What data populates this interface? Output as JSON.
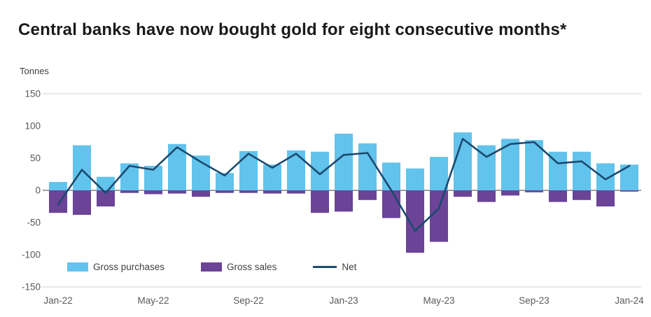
{
  "title": "Central banks have now bought gold for eight consecutive months*",
  "unit_label": "Tonnes",
  "colors": {
    "purchases": "#62c3ec",
    "sales": "#6b4397",
    "net": "#1b4a6f",
    "gridline": "#d0d0d0",
    "zero_line": "#404040",
    "tick_text": "#595959",
    "title_text": "#1a1a1a"
  },
  "legend": {
    "items": [
      {
        "label": "Gross purchases",
        "swatch": "bar",
        "color_key": "purchases"
      },
      {
        "label": "Gross sales",
        "swatch": "bar",
        "color_key": "sales"
      },
      {
        "label": "Net",
        "swatch": "line",
        "color_key": "net"
      }
    ]
  },
  "chart_data": {
    "type": "bar",
    "subtype": "bar-with-line-overlay",
    "title": "Central banks have now bought gold for eight consecutive months*",
    "ylabel": "Tonnes",
    "ylim": [
      -150,
      150
    ],
    "y_ticks": [
      150,
      100,
      50,
      0,
      -50,
      -100,
      -150
    ],
    "gridline_ticks": [
      150,
      0,
      -150
    ],
    "grid": "horizontal-partial",
    "legend_position": "bottom-left-inside",
    "categories": [
      "Jan-22",
      "Feb-22",
      "Mar-22",
      "Apr-22",
      "May-22",
      "Jun-22",
      "Jul-22",
      "Aug-22",
      "Sep-22",
      "Oct-22",
      "Nov-22",
      "Dec-22",
      "Jan-23",
      "Feb-23",
      "Mar-23",
      "Apr-23",
      "May-23",
      "Jun-23",
      "Jul-23",
      "Aug-23",
      "Sep-23",
      "Oct-23",
      "Nov-23",
      "Dec-23",
      "Jan-24"
    ],
    "x_tick_labels": [
      "Jan-22",
      "May-22",
      "Sep-22",
      "Jan-23",
      "May-23",
      "Sep-23",
      "Jan-24"
    ],
    "series": [
      {
        "name": "Gross purchases",
        "type": "bar",
        "color_key": "purchases",
        "values": [
          13,
          70,
          21,
          42,
          38,
          72,
          54,
          27,
          61,
          40,
          62,
          60,
          88,
          73,
          43,
          34,
          52,
          90,
          70,
          80,
          78,
          60,
          60,
          42,
          40
        ]
      },
      {
        "name": "Gross sales",
        "type": "bar",
        "color_key": "sales",
        "values": [
          -35,
          -38,
          -25,
          -4,
          -6,
          -5,
          -10,
          -4,
          -4,
          -5,
          -5,
          -35,
          -33,
          -15,
          -43,
          -97,
          -80,
          -10,
          -18,
          -8,
          -3,
          -18,
          -15,
          -25,
          -2
        ]
      },
      {
        "name": "Net",
        "type": "line",
        "color_key": "net",
        "values": [
          -22,
          32,
          -4,
          38,
          32,
          67,
          44,
          23,
          57,
          35,
          57,
          25,
          55,
          58,
          0,
          -63,
          -28,
          80,
          52,
          72,
          75,
          42,
          45,
          17,
          38
        ]
      }
    ]
  }
}
